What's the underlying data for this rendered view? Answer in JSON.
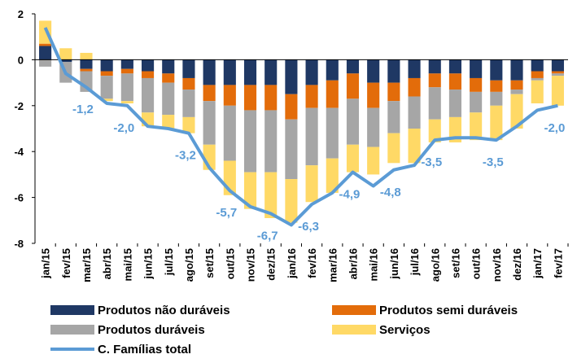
{
  "chart_data": {
    "type": "bar",
    "categories": [
      "jan/15",
      "fev/15",
      "mar/15",
      "abr/15",
      "mai/15",
      "jun/15",
      "jul/15",
      "ago/15",
      "set/15",
      "out/15",
      "nov/15",
      "dez/15",
      "jan/16",
      "fev/16",
      "mar/16",
      "abr/16",
      "mai/16",
      "jun/16",
      "jul/16",
      "ago/16",
      "set/16",
      "out/16",
      "nov/16",
      "dez/16",
      "jan/17",
      "fev/17"
    ],
    "ylim": [
      -8,
      2
    ],
    "yticks": [
      -8,
      -6,
      -4,
      -2,
      0,
      2
    ],
    "series": [
      {
        "name": "Produtos não duráveis",
        "type": "bar",
        "color": "#1f3864",
        "values": [
          0.6,
          -0.1,
          -0.4,
          -0.5,
          -0.4,
          -0.5,
          -0.6,
          -0.8,
          -1.1,
          -1.1,
          -1.1,
          -1.1,
          -1.5,
          -1.1,
          -0.9,
          -0.6,
          -1.0,
          -1.0,
          -0.8,
          -0.6,
          -0.6,
          -0.8,
          -0.9,
          -0.9,
          -0.5,
          -0.5
        ]
      },
      {
        "name": "Produtos semi duráveis",
        "type": "bar",
        "color": "#e36c0a",
        "values": [
          0.1,
          0,
          -0.1,
          -0.2,
          -0.2,
          -0.3,
          -0.4,
          -0.5,
          -0.7,
          -0.9,
          -1.1,
          -1.1,
          -1.1,
          -1.0,
          -1.2,
          -1.1,
          -1.1,
          -0.8,
          -0.8,
          -0.6,
          -0.7,
          -0.6,
          -0.5,
          -0.4,
          -0.3,
          -0.1
        ]
      },
      {
        "name": "Produtos duráveis",
        "type": "bar",
        "color": "#a6a6a6",
        "values": [
          -0.3,
          -0.9,
          -0.9,
          -1.0,
          -1.2,
          -1.5,
          -1.4,
          -1.2,
          -1.9,
          -2.4,
          -2.7,
          -2.7,
          -2.6,
          -2.5,
          -2.2,
          -2.0,
          -1.7,
          -1.4,
          -1.4,
          -1.4,
          -1.2,
          -0.9,
          -0.6,
          -0.2,
          -0.1,
          -0.1
        ]
      },
      {
        "name": "Serviços",
        "type": "bar",
        "color": "#ffd966",
        "values": [
          1.0,
          0.5,
          0.3,
          -0.1,
          -0.1,
          -0.6,
          -0.6,
          -0.7,
          -1.1,
          -1.5,
          -1.6,
          -2.0,
          -1.9,
          -1.6,
          -1.5,
          -1.2,
          -1.2,
          -1.3,
          -1.5,
          -1.0,
          -1.1,
          -1.2,
          -1.5,
          -1.5,
          -1.0,
          -1.3
        ]
      },
      {
        "name": "C. Famílias total",
        "type": "line",
        "color": "#5b9bd5",
        "values": [
          1.4,
          -0.6,
          -1.2,
          -1.9,
          -2.0,
          -2.9,
          -3.0,
          -3.2,
          -4.7,
          -5.7,
          -6.4,
          -6.7,
          -7.2,
          -6.3,
          -5.8,
          -4.9,
          -5.5,
          -4.8,
          -4.6,
          -3.5,
          -3.4,
          -3.4,
          -3.5,
          -2.9,
          -2.2,
          -2.0
        ],
        "value_labels": [
          null,
          null,
          "-1,2",
          null,
          "-2,0",
          null,
          null,
          "-3,2",
          null,
          "-5,7",
          null,
          "-6,7",
          null,
          "-6,3",
          null,
          "-4,9",
          null,
          "-4,8",
          null,
          "-3,5",
          null,
          null,
          "-3,5",
          null,
          null,
          "-2,0"
        ]
      }
    ]
  }
}
